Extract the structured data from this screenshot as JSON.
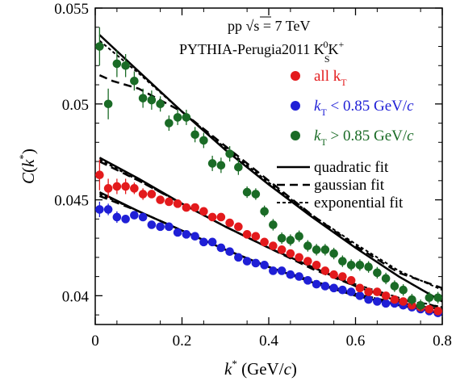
{
  "chart_data": {
    "type": "scatter",
    "title": "",
    "annotations": {
      "line1": "pp √s = 7 TeV",
      "line2": "PYTHIA-Perugia2011  K",
      "line2_sup0": "0",
      "line2_subS": "S",
      "line2_K": "K",
      "line2_supplus": "+"
    },
    "xlabel": "k* (GeV/c)",
    "ylabel": "C(k*)",
    "xlim": [
      0,
      0.8
    ],
    "ylim": [
      0.0385,
      0.055
    ],
    "x_ticks": [
      "0",
      "0.2",
      "0.4",
      "0.6",
      "0.8"
    ],
    "x_tick_values": [
      0,
      0.2,
      0.4,
      0.6,
      0.8
    ],
    "y_ticks": [
      "0.04",
      "0.045",
      "0.05",
      "0.055"
    ],
    "y_tick_values": [
      0.04,
      0.045,
      0.05,
      0.055
    ],
    "grid": false,
    "legend_position": "right",
    "series": [
      {
        "name": "all kT",
        "legend_main": "all k",
        "legend_sub": "T",
        "color": "#e31a1c",
        "x": [
          0.01,
          0.03,
          0.05,
          0.07,
          0.09,
          0.11,
          0.13,
          0.15,
          0.17,
          0.19,
          0.21,
          0.23,
          0.25,
          0.27,
          0.29,
          0.31,
          0.33,
          0.35,
          0.37,
          0.39,
          0.41,
          0.43,
          0.45,
          0.47,
          0.49,
          0.51,
          0.53,
          0.55,
          0.57,
          0.59,
          0.61,
          0.63,
          0.65,
          0.67,
          0.69,
          0.71,
          0.73,
          0.75,
          0.77,
          0.79
        ],
        "y": [
          0.0463,
          0.0456,
          0.0457,
          0.0457,
          0.0456,
          0.0453,
          0.0453,
          0.045,
          0.0449,
          0.0448,
          0.0446,
          0.0446,
          0.0444,
          0.0441,
          0.0441,
          0.0438,
          0.0436,
          0.0432,
          0.0431,
          0.0428,
          0.0426,
          0.0424,
          0.0422,
          0.042,
          0.0418,
          0.0416,
          0.0413,
          0.0411,
          0.041,
          0.0408,
          0.0404,
          0.0402,
          0.0402,
          0.04,
          0.0398,
          0.0397,
          0.0395,
          0.0394,
          0.0393,
          0.0392
        ],
        "err": [
          0.0008,
          0.0005,
          0.0004,
          0.0004,
          0.0003,
          0.0003,
          0.0002,
          0.0002,
          0.0002,
          0.0002,
          0.0002,
          0.0002,
          0.0002,
          0.0002,
          0.0002,
          0.0002,
          0.0002,
          0.0002,
          0.0002,
          0.0002,
          0.0002,
          0.0002,
          0.0002,
          0.0002,
          0.0002,
          0.0002,
          0.0002,
          0.0002,
          0.0002,
          0.0002,
          0.0002,
          0.0002,
          0.0002,
          0.0002,
          0.0002,
          0.0002,
          0.0002,
          0.0002,
          0.0002,
          0.0002
        ]
      },
      {
        "name": "kT < 0.85 GeV/c",
        "legend_main": "k",
        "legend_sub": "T",
        "legend_rest": " < 0.85 GeV/",
        "legend_unit": "c",
        "color": "#1f1fd6",
        "x": [
          0.01,
          0.03,
          0.05,
          0.07,
          0.09,
          0.11,
          0.13,
          0.15,
          0.17,
          0.19,
          0.21,
          0.23,
          0.25,
          0.27,
          0.29,
          0.31,
          0.33,
          0.35,
          0.37,
          0.39,
          0.41,
          0.43,
          0.45,
          0.47,
          0.49,
          0.51,
          0.53,
          0.55,
          0.57,
          0.59,
          0.61,
          0.63,
          0.65,
          0.67,
          0.69,
          0.71,
          0.73,
          0.75,
          0.77,
          0.79
        ],
        "y": [
          0.0445,
          0.0445,
          0.0441,
          0.044,
          0.0442,
          0.0441,
          0.0437,
          0.0436,
          0.0436,
          0.0433,
          0.0432,
          0.0431,
          0.0428,
          0.0428,
          0.0425,
          0.0423,
          0.042,
          0.0418,
          0.0417,
          0.0416,
          0.0413,
          0.0413,
          0.0411,
          0.041,
          0.0408,
          0.0406,
          0.0405,
          0.0404,
          0.0403,
          0.0402,
          0.04,
          0.0398,
          0.0397,
          0.0396,
          0.0396,
          0.0395,
          0.0394,
          0.0393,
          0.0392,
          0.0391
        ],
        "err": [
          0.0004,
          0.0003,
          0.0003,
          0.0002,
          0.0002,
          0.0002,
          0.0002,
          0.0002,
          0.0002,
          0.0002,
          0.0002,
          0.0002,
          0.0002,
          0.0002,
          0.0002,
          0.0002,
          0.0002,
          0.0002,
          0.0002,
          0.0002,
          0.0002,
          0.0002,
          0.0002,
          0.0002,
          0.0002,
          0.0002,
          0.0002,
          0.0002,
          0.0002,
          0.0002,
          0.0002,
          0.0002,
          0.0002,
          0.0002,
          0.0002,
          0.0002,
          0.0002,
          0.0002,
          0.0002,
          0.0002
        ]
      },
      {
        "name": "kT > 0.85 GeV/c",
        "legend_main": "k",
        "legend_sub": "T",
        "legend_rest": " > 0.85 GeV/",
        "legend_unit": "c",
        "color": "#1a6b26",
        "x": [
          0.01,
          0.03,
          0.05,
          0.07,
          0.09,
          0.11,
          0.13,
          0.15,
          0.17,
          0.19,
          0.21,
          0.23,
          0.25,
          0.27,
          0.29,
          0.31,
          0.33,
          0.35,
          0.37,
          0.39,
          0.41,
          0.43,
          0.45,
          0.47,
          0.49,
          0.51,
          0.53,
          0.55,
          0.57,
          0.59,
          0.61,
          0.63,
          0.65,
          0.67,
          0.69,
          0.71,
          0.73,
          0.75,
          0.77,
          0.79
        ],
        "y": [
          0.053,
          0.05,
          0.0521,
          0.052,
          0.0512,
          0.0503,
          0.0502,
          0.05,
          0.049,
          0.0493,
          0.0493,
          0.0484,
          0.0481,
          0.0469,
          0.0468,
          0.0474,
          0.0467,
          0.0454,
          0.0453,
          0.0444,
          0.0437,
          0.043,
          0.0429,
          0.0431,
          0.0426,
          0.0424,
          0.0424,
          0.0422,
          0.0418,
          0.0416,
          0.0416,
          0.0415,
          0.0412,
          0.0409,
          0.0405,
          0.0403,
          0.0398,
          0.0395,
          0.0399,
          0.0399
        ],
        "err": [
          0.001,
          0.0008,
          0.0007,
          0.0006,
          0.0005,
          0.0005,
          0.0005,
          0.0004,
          0.0004,
          0.0004,
          0.0004,
          0.0004,
          0.0004,
          0.0004,
          0.0004,
          0.0004,
          0.0004,
          0.0003,
          0.0003,
          0.0003,
          0.0003,
          0.0003,
          0.0003,
          0.0003,
          0.0003,
          0.0003,
          0.0003,
          0.0003,
          0.0003,
          0.0003,
          0.0003,
          0.0003,
          0.0003,
          0.0003,
          0.0003,
          0.0003,
          0.0003,
          0.0003,
          0.0003,
          0.0003
        ]
      }
    ],
    "fits": [
      {
        "name": "quadratic fit",
        "style": "solid"
      },
      {
        "name": "gaussian fit",
        "style": "dashed"
      },
      {
        "name": "exponential fit",
        "style": "dotted"
      }
    ],
    "fit_curves": {
      "all_quadratic": {
        "x": [
          0.01,
          0.1,
          0.2,
          0.3,
          0.4,
          0.5,
          0.6,
          0.7,
          0.8
        ],
        "y": [
          0.0472,
          0.0461,
          0.0448,
          0.0436,
          0.0425,
          0.0415,
          0.0405,
          0.0397,
          0.039
        ]
      },
      "low_quadratic": {
        "x": [
          0.01,
          0.1,
          0.2,
          0.3,
          0.4,
          0.5,
          0.6,
          0.7,
          0.8
        ],
        "y": [
          0.0454,
          0.0444,
          0.0434,
          0.0424,
          0.0415,
          0.0407,
          0.04,
          0.0395,
          0.0391
        ]
      },
      "high_quadratic": {
        "x": [
          0.01,
          0.1,
          0.2,
          0.3,
          0.4,
          0.5,
          0.6,
          0.7,
          0.8
        ],
        "y": [
          0.0536,
          0.0517,
          0.0496,
          0.0476,
          0.0458,
          0.0441,
          0.0425,
          0.041,
          0.0397
        ]
      },
      "all_gauss": {
        "x": [
          0.01,
          0.1,
          0.2,
          0.3,
          0.4,
          0.5,
          0.6,
          0.7,
          0.8
        ],
        "y": [
          0.047,
          0.046,
          0.0448,
          0.0436,
          0.0425,
          0.0414,
          0.0405,
          0.0398,
          0.0394
        ]
      },
      "low_gauss": {
        "x": [
          0.01,
          0.1,
          0.2,
          0.3,
          0.4,
          0.5,
          0.6,
          0.7,
          0.8
        ],
        "y": [
          0.0452,
          0.0444,
          0.0434,
          0.0424,
          0.0415,
          0.0407,
          0.0401,
          0.0396,
          0.0393
        ]
      },
      "high_gauss": {
        "x": [
          0.01,
          0.04,
          0.1,
          0.2,
          0.3,
          0.4,
          0.5,
          0.6,
          0.7,
          0.8
        ],
        "y": [
          0.0515,
          0.0512,
          0.0508,
          0.0496,
          0.0478,
          0.046,
          0.0442,
          0.0426,
          0.0412,
          0.0404
        ]
      },
      "all_expo": {
        "x": [
          0.01,
          0.1,
          0.2,
          0.3,
          0.4,
          0.5,
          0.6,
          0.7,
          0.8
        ],
        "y": [
          0.0471,
          0.046,
          0.0448,
          0.0436,
          0.0425,
          0.0415,
          0.0406,
          0.0399,
          0.0394
        ]
      },
      "low_expo": {
        "x": [
          0.01,
          0.1,
          0.2,
          0.3,
          0.4,
          0.5,
          0.6,
          0.7,
          0.8
        ],
        "y": [
          0.0453,
          0.0444,
          0.0434,
          0.0424,
          0.0415,
          0.0408,
          0.0401,
          0.0396,
          0.0393
        ]
      },
      "high_expo": {
        "x": [
          0.01,
          0.1,
          0.2,
          0.3,
          0.4,
          0.5,
          0.6,
          0.7,
          0.8
        ],
        "y": [
          0.0533,
          0.0516,
          0.0496,
          0.0477,
          0.0459,
          0.0442,
          0.0427,
          0.0413,
          0.0403
        ]
      }
    }
  }
}
